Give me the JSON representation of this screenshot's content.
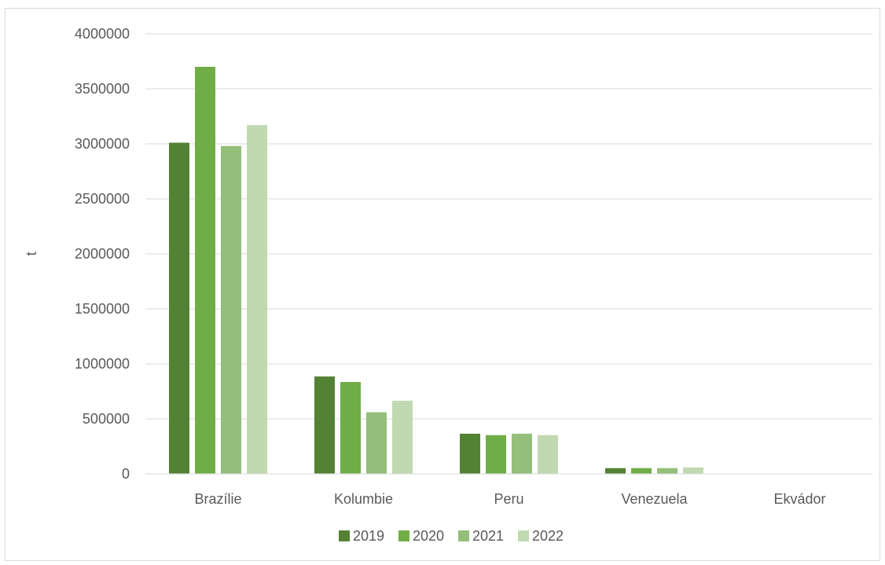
{
  "chart_data": {
    "type": "bar",
    "title": "",
    "xlabel": "",
    "ylabel": "t",
    "categories": [
      "Brazílie",
      "Kolumbie",
      "Peru",
      "Venezuela",
      "Ekvádor"
    ],
    "series": [
      {
        "name": "2019",
        "color": "#548235",
        "values": [
          3010000,
          885000,
          365000,
          52000,
          1500
        ]
      },
      {
        "name": "2020",
        "color": "#70ad47",
        "values": [
          3700000,
          835000,
          352000,
          52000,
          1500
        ]
      },
      {
        "name": "2021",
        "color": "#93bf7a",
        "values": [
          2980000,
          560000,
          365000,
          52000,
          1500
        ]
      },
      {
        "name": "2022",
        "color": "#c1d9b1",
        "values": [
          3170000,
          665000,
          352000,
          58000,
          1500
        ]
      }
    ],
    "ylim": [
      0,
      4000000
    ],
    "yticks": [
      0,
      500000,
      1000000,
      1500000,
      2000000,
      2500000,
      3000000,
      3500000,
      4000000
    ],
    "ytick_labels": [
      "0",
      "500000",
      "1000000",
      "1500000",
      "2000000",
      "2500000",
      "3000000",
      "3500000",
      "4000000"
    ],
    "grid": true,
    "legend_position": "bottom"
  }
}
